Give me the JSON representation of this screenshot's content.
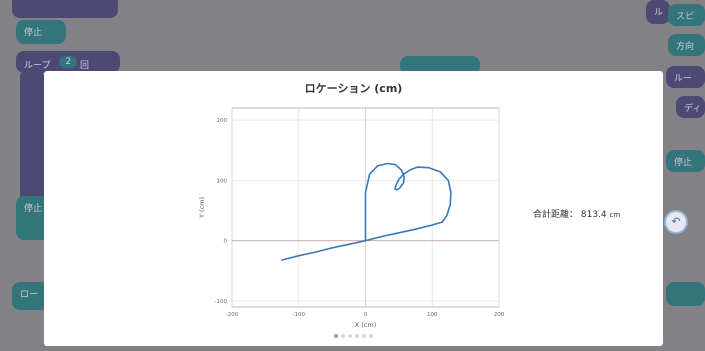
{
  "background": {
    "blocks": [
      {
        "label": "",
        "style": "purple"
      },
      {
        "label": "停止",
        "style": "teal"
      },
      {
        "label": "ループ",
        "style": "purple"
      },
      {
        "label": "2",
        "style": "teal"
      },
      {
        "label": "回",
        "style": "purple"
      },
      {
        "label": "停止",
        "style": "teal"
      },
      {
        "label": "ロー",
        "style": "teal"
      },
      {
        "label": "ル",
        "style": "purple"
      },
      {
        "label": "スピ",
        "style": "teal"
      },
      {
        "label": "方向",
        "style": "teal"
      },
      {
        "label": "ルー",
        "style": "purple"
      },
      {
        "label": "ディ",
        "style": "purple"
      },
      {
        "label": "停止",
        "style": "teal"
      }
    ],
    "undo_icon": "undo-icon"
  },
  "modal": {
    "title": "ロケーション (cm)",
    "distance_label": "合計距離：",
    "distance_value": "813.4",
    "distance_unit": "cm",
    "pager_dots": 6,
    "pager_active": 0
  },
  "chart_data": {
    "type": "line",
    "title": "",
    "xlabel": "X (cm)",
    "ylabel": "Y (cm)",
    "xlim": [
      -200,
      200
    ],
    "ylim": [
      -110,
      220
    ],
    "xticks": [
      -200,
      -100,
      0,
      100,
      200
    ],
    "yticks": [
      -100,
      0,
      100,
      200
    ],
    "grid": true,
    "series_color": "#3a78b8",
    "series": [
      {
        "x": [
          -125,
          -100,
          -75,
          -50,
          -25,
          0,
          25,
          50,
          75,
          100,
          115,
          122,
          127,
          128,
          124,
          112,
          95,
          78,
          68,
          58,
          50,
          46,
          44,
          47,
          52,
          57,
          58,
          54,
          45,
          33,
          18,
          6,
          0,
          0
        ],
        "y": [
          -32,
          -25,
          -19,
          -12,
          -6,
          0,
          7,
          13,
          19,
          26,
          31,
          42,
          60,
          80,
          100,
          114,
          121,
          122,
          118,
          111,
          102,
          93,
          86,
          84,
          88,
          96,
          106,
          117,
          126,
          128,
          124,
          110,
          80,
          0
        ]
      }
    ]
  }
}
